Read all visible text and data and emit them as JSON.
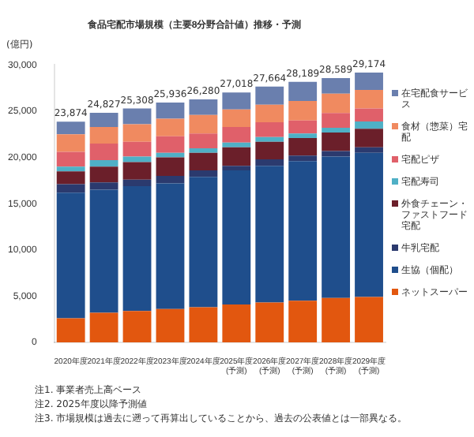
{
  "chart_data": {
    "type": "bar",
    "stacked": true,
    "title": "食品宅配市場規模（主要8分野合計値）推移・予測",
    "ylabel": "(億円)",
    "categories": [
      "2020年度",
      "2021年度",
      "2022年度",
      "2023年度",
      "2024年度",
      "2025年度\n(予測)",
      "2026年度\n(予測)",
      "2027年度\n(予測)",
      "2028年度\n(予測)",
      "2029年度\n(予測)"
    ],
    "series": [
      {
        "name": "ネットスーパー",
        "color": "#e2570f",
        "values": [
          2600,
          3200,
          3400,
          3600,
          3800,
          4100,
          4300,
          4500,
          4800,
          4900
        ]
      },
      {
        "name": "生協（個配）",
        "color": "#1f4e8c",
        "values": [
          13600,
          13300,
          13500,
          13600,
          14100,
          14500,
          14800,
          15100,
          15300,
          15600
        ]
      },
      {
        "name": "牛乳宅配",
        "color": "#2b3a6e",
        "values": [
          900,
          800,
          700,
          800,
          700,
          500,
          700,
          600,
          600,
          600
        ]
      },
      {
        "name": "外食チェーン・ファストフード宅配",
        "color": "#6b1f2a",
        "values": [
          1400,
          1700,
          1900,
          2000,
          1900,
          2000,
          1900,
          1900,
          2000,
          2000
        ]
      },
      {
        "name": "宅配寿司",
        "color": "#4fb0c6",
        "values": [
          500,
          700,
          600,
          500,
          500,
          500,
          500,
          500,
          500,
          800
        ]
      },
      {
        "name": "宅配ピザ",
        "color": "#e0606a",
        "values": [
          1600,
          1800,
          1600,
          1800,
          1600,
          1700,
          1600,
          1400,
          1600,
          1400
        ]
      },
      {
        "name": "食材（惣菜）宅配",
        "color": "#f08a60",
        "values": [
          1900,
          1800,
          1900,
          1900,
          2000,
          1900,
          1900,
          2100,
          2100,
          2000
        ]
      },
      {
        "name": "在宅配食サービス",
        "color": "#6a7fae",
        "values": [
          1374,
          1527,
          1708,
          1736,
          1680,
          1818,
          1964,
          2089,
          1689,
          1874
        ]
      }
    ],
    "totals": [
      "23,874",
      "24,827",
      "25,308",
      "25,936",
      "26,280",
      "27,018",
      "27,664",
      "28,189",
      "28,589",
      "29,174"
    ],
    "ylim": [
      0,
      30000
    ],
    "yticks": [
      0,
      {
        "value": 5000,
        "label": "5,000"
      },
      {
        "value": 10000,
        "label": "10,000"
      },
      {
        "value": 15000,
        "label": "15,000"
      },
      {
        "value": 20000,
        "label": "20,000"
      },
      {
        "value": 25000,
        "label": "25,000"
      },
      {
        "value": 30000,
        "label": "30,000"
      }
    ],
    "grid": false,
    "legend": "right",
    "annotations": [
      "注1. 事業者売上高ベース",
      "注2. 2025年度以降予測値",
      "注3. 市場規模は過去に遡って再算出していることから、過去の公表値とは一部異なる。"
    ]
  }
}
